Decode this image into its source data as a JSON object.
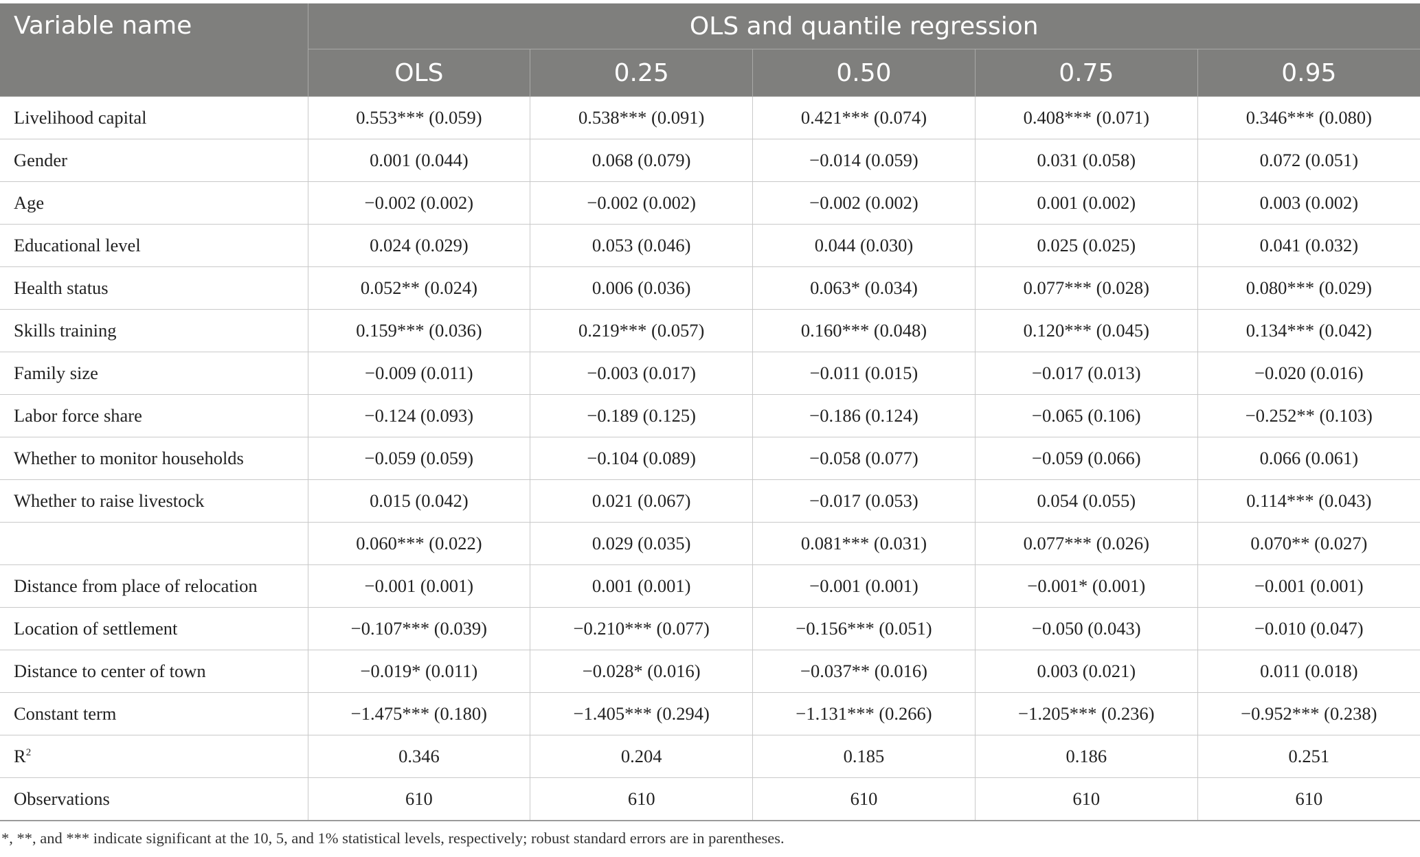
{
  "header": {
    "variable_label": "Variable name",
    "group_label": "OLS and quantile regression",
    "columns": [
      "OLS",
      "0.25",
      "0.50",
      "0.75",
      "0.95"
    ]
  },
  "rows": [
    {
      "name": "Livelihood capital",
      "values": [
        "0.553*** (0.059)",
        "0.538*** (0.091)",
        "0.421*** (0.074)",
        "0.408*** (0.071)",
        "0.346*** (0.080)"
      ]
    },
    {
      "name": "Gender",
      "values": [
        "0.001 (0.044)",
        "0.068 (0.079)",
        "−0.014 (0.059)",
        "0.031 (0.058)",
        "0.072 (0.051)"
      ]
    },
    {
      "name": "Age",
      "values": [
        "−0.002 (0.002)",
        "−0.002 (0.002)",
        "−0.002 (0.002)",
        "0.001 (0.002)",
        "0.003 (0.002)"
      ]
    },
    {
      "name": "Educational level",
      "values": [
        "0.024 (0.029)",
        "0.053 (0.046)",
        "0.044 (0.030)",
        "0.025 (0.025)",
        "0.041 (0.032)"
      ]
    },
    {
      "name": "Health status",
      "values": [
        "0.052** (0.024)",
        "0.006 (0.036)",
        "0.063* (0.034)",
        "0.077*** (0.028)",
        "0.080*** (0.029)"
      ]
    },
    {
      "name": "Skills training",
      "values": [
        "0.159*** (0.036)",
        "0.219*** (0.057)",
        "0.160*** (0.048)",
        "0.120*** (0.045)",
        "0.134*** (0.042)"
      ]
    },
    {
      "name": "Family size",
      "values": [
        "−0.009 (0.011)",
        "−0.003 (0.017)",
        "−0.011 (0.015)",
        "−0.017 (0.013)",
        "−0.020 (0.016)"
      ]
    },
    {
      "name": "Labor force share",
      "values": [
        "−0.124 (0.093)",
        "−0.189 (0.125)",
        "−0.186 (0.124)",
        "−0.065 (0.106)",
        "−0.252** (0.103)"
      ]
    },
    {
      "name": "Whether to monitor households",
      "values": [
        "−0.059 (0.059)",
        "−0.104 (0.089)",
        "−0.058 (0.077)",
        "−0.059 (0.066)",
        "0.066 (0.061)"
      ]
    },
    {
      "name": "Whether to raise livestock",
      "values": [
        "0.015 (0.042)",
        "0.021 (0.067)",
        "−0.017 (0.053)",
        "0.054 (0.055)",
        "0.114*** (0.043)"
      ]
    },
    {
      "name": "",
      "values": [
        "0.060*** (0.022)",
        "0.029 (0.035)",
        "0.081*** (0.031)",
        "0.077*** (0.026)",
        "0.070** (0.027)"
      ]
    },
    {
      "name": "Distance from place of relocation",
      "values": [
        "−0.001 (0.001)",
        "0.001 (0.001)",
        "−0.001 (0.001)",
        "−0.001* (0.001)",
        "−0.001 (0.001)"
      ]
    },
    {
      "name": "Location of settlement",
      "values": [
        "−0.107*** (0.039)",
        "−0.210*** (0.077)",
        "−0.156*** (0.051)",
        "−0.050 (0.043)",
        "−0.010 (0.047)"
      ]
    },
    {
      "name": "Distance to center of town",
      "values": [
        "−0.019* (0.011)",
        "−0.028* (0.016)",
        "−0.037** (0.016)",
        "0.003 (0.021)",
        "0.011 (0.018)"
      ]
    },
    {
      "name": "Constant term",
      "values": [
        "−1.475*** (0.180)",
        "−1.405*** (0.294)",
        "−1.131*** (0.266)",
        "−1.205*** (0.236)",
        "−0.952*** (0.238)"
      ]
    },
    {
      "name": "R",
      "sup": "2",
      "values": [
        "0.346",
        "0.204",
        "0.185",
        "0.186",
        "0.251"
      ]
    },
    {
      "name": "Observations",
      "values": [
        "610",
        "610",
        "610",
        "610",
        "610"
      ]
    }
  ],
  "footnote": "*, **, and *** indicate significant at the 10, 5, and 1% statistical levels, respectively; robust standard errors are in parentheses."
}
